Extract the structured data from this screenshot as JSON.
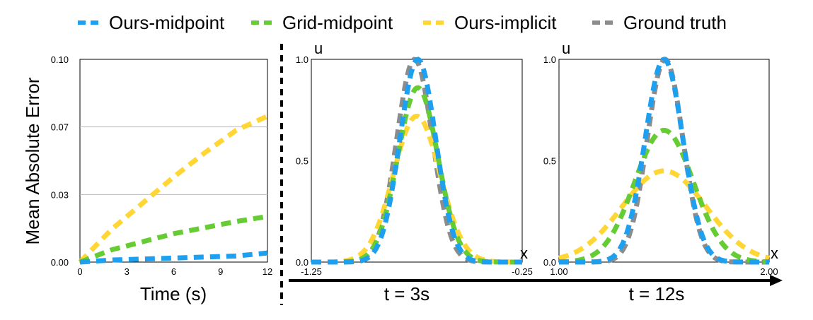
{
  "legend": [
    {
      "name": "Ours-midpoint",
      "color": "#1ea0f0"
    },
    {
      "name": "Grid-midpoint",
      "color": "#66cc33"
    },
    {
      "name": "Ours-implicit",
      "color": "#ffd633"
    },
    {
      "name": "Ground truth",
      "color": "#8c8c8c"
    }
  ],
  "time_arrow": true,
  "chart_data": [
    {
      "type": "line",
      "id": "error",
      "xlabel": "Time (s)",
      "ylabel": "Mean Absolute Error",
      "xlim": [
        0,
        12
      ],
      "ylim": [
        0,
        0.1
      ],
      "xticks": [
        "0",
        "3",
        "6",
        "9",
        "12"
      ],
      "xtick_values": [
        0,
        3,
        6,
        9,
        12
      ],
      "yticks": [
        "0.00",
        "0.03",
        "0.07",
        "0.10"
      ],
      "ytick_values": [
        0,
        0.0333,
        0.0667,
        0.1
      ],
      "grid": "horizontal",
      "series": [
        {
          "name": "Ours-implicit",
          "color": "#ffd633",
          "x": [
            0,
            2,
            4,
            6,
            8,
            10,
            12
          ],
          "y": [
            0.0,
            0.016,
            0.029,
            0.042,
            0.054,
            0.065,
            0.072
          ]
        },
        {
          "name": "Grid-midpoint",
          "color": "#66cc33",
          "x": [
            0,
            2,
            4,
            6,
            8,
            10,
            12
          ],
          "y": [
            0.0,
            0.006,
            0.01,
            0.014,
            0.017,
            0.02,
            0.0225
          ]
        },
        {
          "name": "Ours-midpoint",
          "color": "#1ea0f0",
          "x": [
            0,
            2,
            4,
            6,
            8,
            10,
            12
          ],
          "y": [
            0.0,
            0.001,
            0.0015,
            0.002,
            0.0025,
            0.003,
            0.0045
          ]
        }
      ]
    },
    {
      "type": "line",
      "id": "profile-3s",
      "xlabel": "t = 3s",
      "corner_y": "u",
      "corner_x": "x",
      "xlim": [
        -1.25,
        -0.25
      ],
      "ylim": [
        0,
        1
      ],
      "xticks": [
        "-1.25",
        "-0.25"
      ],
      "xtick_values": [
        -1.25,
        -0.25
      ],
      "yticks": [
        "0.0",
        "0.5",
        "1.0"
      ],
      "ytick_values": [
        0,
        0.5,
        1
      ],
      "series": [
        {
          "name": "Ground truth",
          "color": "#8c8c8c",
          "peak": 1.0,
          "center": -0.76,
          "sigma": 0.085
        },
        {
          "name": "Ours-implicit",
          "color": "#ffd633",
          "peak": 0.72,
          "center": -0.75,
          "sigma": 0.11
        },
        {
          "name": "Grid-midpoint",
          "color": "#66cc33",
          "peak": 0.86,
          "center": -0.745,
          "sigma": 0.095
        },
        {
          "name": "Ours-midpoint",
          "color": "#1ea0f0",
          "peak": 1.0,
          "center": -0.745,
          "sigma": 0.085
        }
      ]
    },
    {
      "type": "line",
      "id": "profile-12s",
      "xlabel": "t = 12s",
      "corner_y": "u",
      "corner_x": "x",
      "xlim": [
        1.0,
        2.0
      ],
      "ylim": [
        0,
        1
      ],
      "xticks": [
        "1.00",
        "2.00"
      ],
      "xtick_values": [
        1.0,
        2.0
      ],
      "yticks": [
        "0.0",
        "0.5",
        "1.0"
      ],
      "ytick_values": [
        0,
        0.5,
        1
      ],
      "series": [
        {
          "name": "Ground truth",
          "color": "#8c8c8c",
          "peak": 1.0,
          "center": 1.505,
          "sigma": 0.085
        },
        {
          "name": "Ours-implicit",
          "color": "#ffd633",
          "peak": 0.45,
          "center": 1.5,
          "sigma": 0.2
        },
        {
          "name": "Grid-midpoint",
          "color": "#66cc33",
          "peak": 0.65,
          "center": 1.5,
          "sigma": 0.14
        },
        {
          "name": "Ours-midpoint",
          "color": "#1ea0f0",
          "peak": 1.0,
          "center": 1.5,
          "sigma": 0.09
        }
      ]
    }
  ]
}
